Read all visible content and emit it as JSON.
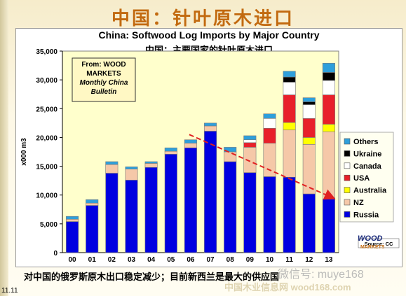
{
  "slide": {
    "title": "中国：针叶原木进口",
    "caption": "对中国的俄罗斯原木出口稳定减少；目前新西兰是最大的供应国",
    "page_number": "11.11",
    "watermark": "微信号: muye168",
    "watermark_site": "中国木业信息网 wood168.com"
  },
  "source_box": {
    "line1": "From: WOOD",
    "line2": "MARKETS",
    "line3": "Monthly China",
    "line4": "Bulletin"
  },
  "source_note": "Source: CC",
  "logo": {
    "top": "WOOD",
    "bottom": "MARKETS"
  },
  "colors": {
    "panel_bg": "#ffffcc",
    "legend_bg": "#fffff0",
    "trend_arrow": "#e02020",
    "title_accent": "#c26a10"
  },
  "chart_data": {
    "type": "bar",
    "stacked": true,
    "title": "China: Softwood Log Imports by Major Country",
    "subtitle": "中国：主要国家的针叶原木进口",
    "xlabel": "",
    "ylabel": "x000 m3",
    "ylim": [
      0,
      35000
    ],
    "yticks": [
      0,
      5000,
      10000,
      15000,
      20000,
      25000,
      30000,
      35000
    ],
    "ytick_labels": [
      "0",
      "5,000",
      "10,000",
      "15,000",
      "20,000",
      "25,000",
      "30,000",
      "35,000"
    ],
    "grid": false,
    "legend_position": "right",
    "categories": [
      "00",
      "01",
      "02",
      "03",
      "04",
      "05",
      "06",
      "07",
      "08",
      "09",
      "10",
      "11",
      "12",
      "13"
    ],
    "series": [
      {
        "name": "Russia",
        "color": "#0000e0",
        "values": [
          5400,
          8200,
          13800,
          12600,
          14800,
          17100,
          18200,
          21100,
          15800,
          13900,
          13200,
          13100,
          10200,
          9300
        ]
      },
      {
        "name": "NZ",
        "color": "#f5c8a8",
        "values": [
          400,
          400,
          1500,
          1900,
          700,
          500,
          800,
          900,
          1700,
          4400,
          5800,
          8200,
          8600,
          11700
        ]
      },
      {
        "name": "Australia",
        "color": "#ffff00",
        "values": [
          0,
          0,
          0,
          0,
          0,
          0,
          0,
          0,
          0,
          0,
          0,
          1300,
          1200,
          1300
        ]
      },
      {
        "name": "USA",
        "color": "#e8202a",
        "values": [
          0,
          0,
          0,
          0,
          0,
          0,
          0,
          0,
          0,
          800,
          2600,
          4800,
          3300,
          5100
        ]
      },
      {
        "name": "Canada",
        "color": "#ffffff",
        "values": [
          0,
          0,
          0,
          0,
          0,
          0,
          0,
          0,
          0,
          500,
          1700,
          2200,
          2400,
          2500
        ]
      },
      {
        "name": "Ukraine",
        "color": "#000000",
        "values": [
          0,
          0,
          0,
          0,
          0,
          0,
          0,
          0,
          0,
          0,
          0,
          900,
          500,
          1400
        ]
      },
      {
        "name": "Others",
        "color": "#2e9fdb",
        "values": [
          500,
          600,
          500,
          400,
          300,
          600,
          600,
          500,
          800,
          700,
          800,
          1000,
          700,
          1600
        ]
      }
    ],
    "trend_line": {
      "from": {
        "x": "06",
        "y": 20500
      },
      "to": {
        "x": "13",
        "y": 9500
      },
      "color": "#e02020",
      "style": "dashed"
    }
  }
}
